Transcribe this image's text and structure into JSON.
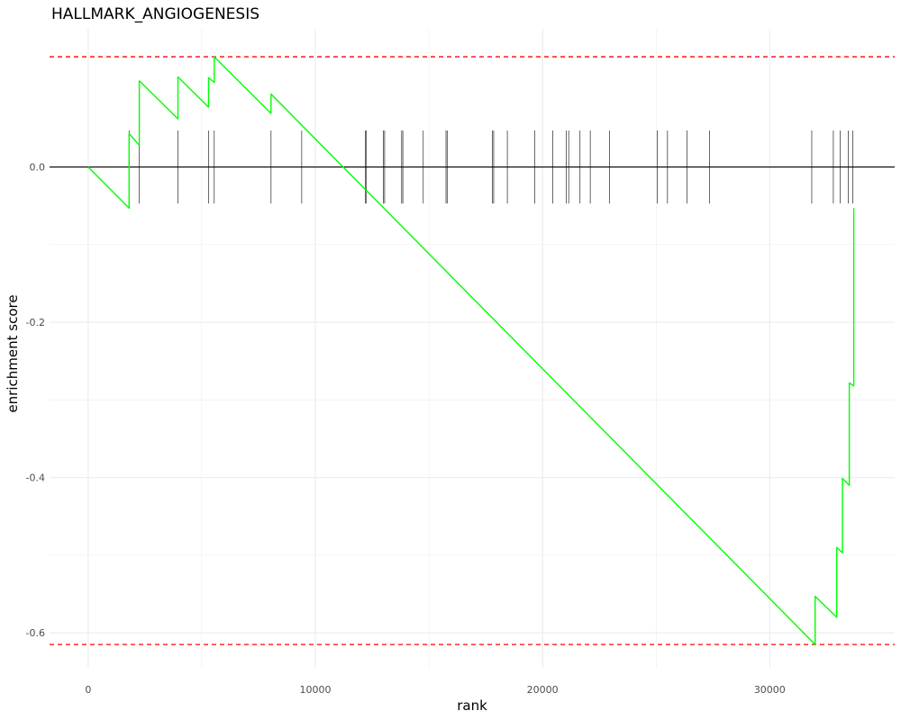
{
  "chart_data": {
    "type": "line",
    "title": "HALLMARK_ANGIOGENESIS",
    "xlabel": "rank",
    "ylabel": "enrichment score",
    "xlim": [
      -1700,
      35500
    ],
    "ylim": [
      -0.645,
      0.178
    ],
    "x_ticks": [
      0,
      10000,
      20000,
      30000
    ],
    "x_tick_labels": [
      "0",
      "10000",
      "20000",
      "30000"
    ],
    "y_ticks": [
      0.0,
      -0.2,
      -0.4,
      -0.6
    ],
    "y_tick_labels": [
      "0.0",
      "-0.2",
      "-0.4",
      "-0.6"
    ],
    "grid": true,
    "max_es": 0.142,
    "min_es": -0.615,
    "hit_ticks": {
      "y_top": 0.047,
      "y_bottom": -0.047
    },
    "colors": {
      "es_line": "#00ff00",
      "threshold": "#ff0000",
      "zero_line": "#000000",
      "hit_tick": "#000000",
      "grid": "#ebebeb"
    },
    "series": [
      {
        "x": [
          0,
          1800,
          1800,
          2250,
          2250,
          3950,
          3950,
          5300,
          5300,
          5550,
          5550,
          8050,
          8050,
          32000,
          32000,
          32950,
          32950,
          33200,
          33200,
          33500,
          33500,
          33700,
          33700
        ],
        "values": [
          0.0,
          -0.053,
          0.043,
          0.028,
          0.111,
          0.062,
          0.116,
          0.077,
          0.115,
          0.109,
          0.142,
          0.069,
          0.094,
          -0.615,
          -0.553,
          -0.58,
          -0.49,
          -0.497,
          -0.401,
          -0.41,
          -0.278,
          -0.282,
          -0.053
        ]
      }
    ],
    "hits": [
      1800,
      2250,
      3950,
      5300,
      5550,
      8050,
      9400,
      12200,
      12250,
      13000,
      13050,
      13800,
      13850,
      14750,
      15750,
      15800,
      17800,
      17850,
      18450,
      19650,
      20450,
      21050,
      21150,
      21650,
      22100,
      22950,
      25050,
      25500,
      26350,
      27350,
      31850,
      32800,
      33100,
      33450,
      33650
    ]
  }
}
